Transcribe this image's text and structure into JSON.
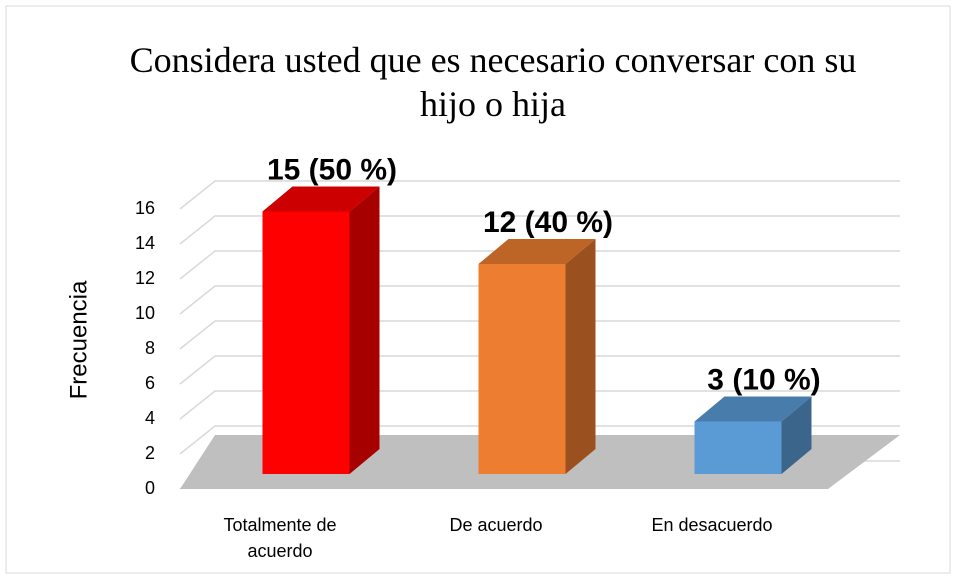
{
  "chart_data": {
    "type": "bar3d",
    "title": "Considera usted que es necesario conversar con su hijo o hija",
    "ylabel": "Frecuencia",
    "categories": [
      "Totalmente de acuerdo",
      "De acuerdo",
      "En desacuerdo"
    ],
    "values": [
      15,
      12,
      3
    ],
    "value_labels": [
      "15 (50 %)",
      "12 (40 %)",
      "3 (10 %)"
    ],
    "colors": [
      "#ff0000",
      "#ed7d31",
      "#5b9bd5"
    ],
    "ylim": [
      0,
      16
    ],
    "yticks": [
      0,
      2,
      4,
      6,
      8,
      10,
      12,
      14,
      16
    ],
    "grid": true
  }
}
